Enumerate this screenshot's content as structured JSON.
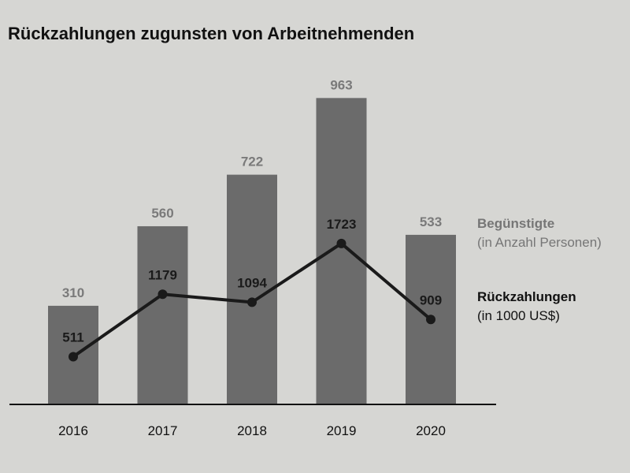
{
  "chart_data": {
    "type": "bar",
    "title": "Rückzahlungen zugunsten von Arbeitnehmenden",
    "categories": [
      "2016",
      "2017",
      "2018",
      "2019",
      "2020"
    ],
    "series": [
      {
        "name": "Begünstigte",
        "unit": "(in Anzahl Personen)",
        "type": "bar",
        "values": [
          310,
          560,
          722,
          963,
          533
        ],
        "color": "#6b6b6b",
        "label_color": "#7a7a7a"
      },
      {
        "name": "Rückzahlungen",
        "unit": "(in 1000 US$)",
        "type": "line",
        "values": [
          511,
          1179,
          1094,
          1723,
          909
        ],
        "color": "#1a1a1a",
        "label_color": "#1a1a1a"
      }
    ],
    "legend_position": "right",
    "grid": false
  }
}
